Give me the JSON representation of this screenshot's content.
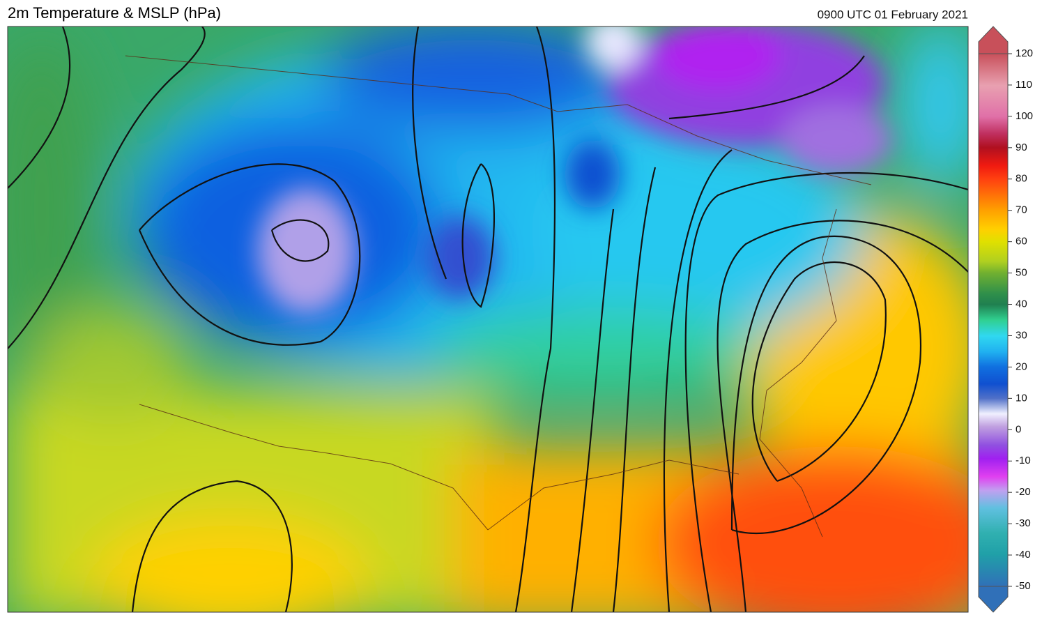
{
  "header": {
    "title": "2m Temperature & MSLP (hPa)",
    "timestamp": "0900 UTC 01 February 2021"
  },
  "colorbar": {
    "ticks": [
      -50,
      -40,
      -30,
      -20,
      -10,
      0,
      10,
      20,
      30,
      40,
      50,
      60,
      70,
      80,
      90,
      100,
      110,
      120
    ]
  }
}
